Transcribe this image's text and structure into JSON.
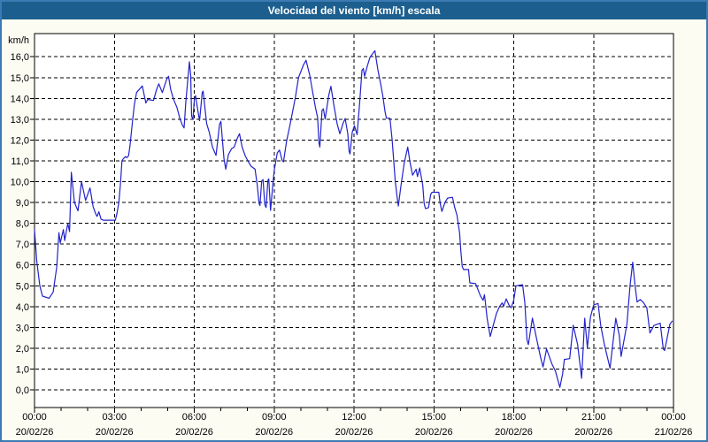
{
  "window": {
    "title": "Velocidad del viento [km/h] escala"
  },
  "chart_data": {
    "type": "line",
    "title": "Velocidad del viento [km/h] escala",
    "unit_label": "km/h",
    "series_name": "Velocidad del viento",
    "grid": "dashed",
    "legend_position": "none",
    "ylim": [
      0,
      16
    ],
    "y_tick_step": 1.0,
    "y_tick_labels": [
      "0,0",
      "1,0",
      "2,0",
      "3,0",
      "4,0",
      "5,0",
      "6,0",
      "7,0",
      "8,0",
      "9,0",
      "10,0",
      "11,0",
      "12,0",
      "13,0",
      "14,0",
      "15,0",
      "16,0"
    ],
    "x_minor_tick_hours": 1,
    "x_ticks": [
      {
        "hour": 0,
        "time": "00:00",
        "date": "20/02/26"
      },
      {
        "hour": 3,
        "time": "03:00",
        "date": "20/02/26"
      },
      {
        "hour": 6,
        "time": "06:00",
        "date": "20/02/26"
      },
      {
        "hour": 9,
        "time": "09:00",
        "date": "20/02/26"
      },
      {
        "hour": 12,
        "time": "12:00",
        "date": "20/02/26"
      },
      {
        "hour": 15,
        "time": "15:00",
        "date": "20/02/26"
      },
      {
        "hour": 18,
        "time": "18:00",
        "date": "20/02/26"
      },
      {
        "hour": 21,
        "time": "21:00",
        "date": "20/02/26"
      },
      {
        "hour": 24,
        "time": "00:00",
        "date": "21/02/26"
      }
    ],
    "points_minute_kmh": [
      [
        0,
        7.7
      ],
      [
        5,
        6.2
      ],
      [
        12,
        5.0
      ],
      [
        18,
        4.5
      ],
      [
        33,
        4.4
      ],
      [
        42,
        4.7
      ],
      [
        50,
        5.9
      ],
      [
        55,
        7.55
      ],
      [
        58,
        7.06
      ],
      [
        65,
        7.7
      ],
      [
        68,
        7.17
      ],
      [
        75,
        8.0
      ],
      [
        79,
        7.6
      ],
      [
        83,
        10.45
      ],
      [
        90,
        9.0
      ],
      [
        98,
        8.6
      ],
      [
        106,
        10.0
      ],
      [
        115,
        9.1
      ],
      [
        125,
        9.7
      ],
      [
        132,
        8.8
      ],
      [
        138,
        8.45
      ],
      [
        141,
        8.33
      ],
      [
        145,
        8.55
      ],
      [
        150,
        8.2
      ],
      [
        155,
        8.15
      ],
      [
        182,
        8.15
      ],
      [
        186,
        8.5
      ],
      [
        190,
        9.0
      ],
      [
        194,
        10.0
      ],
      [
        197,
        11.0
      ],
      [
        200,
        11.1
      ],
      [
        205,
        11.2
      ],
      [
        208,
        11.15
      ],
      [
        212,
        11.25
      ],
      [
        215,
        11.7
      ],
      [
        221,
        12.93
      ],
      [
        225,
        13.7
      ],
      [
        230,
        14.28
      ],
      [
        243,
        14.6
      ],
      [
        251,
        13.78
      ],
      [
        255,
        13.95
      ],
      [
        268,
        13.9
      ],
      [
        275,
        14.42
      ],
      [
        280,
        14.7
      ],
      [
        288,
        14.28
      ],
      [
        298,
        14.92
      ],
      [
        302,
        15.06
      ],
      [
        307,
        14.42
      ],
      [
        314,
        13.92
      ],
      [
        321,
        13.57
      ],
      [
        327,
        13.07
      ],
      [
        333,
        12.72
      ],
      [
        337,
        12.58
      ],
      [
        341,
        13.85
      ],
      [
        349,
        15.76
      ],
      [
        352,
        15.1
      ],
      [
        354,
        13.14
      ],
      [
        357,
        13.0
      ],
      [
        360,
        13.9
      ],
      [
        363,
        14.13
      ],
      [
        368,
        13.43
      ],
      [
        372,
        12.93
      ],
      [
        378,
        14.28
      ],
      [
        380,
        14.35
      ],
      [
        388,
        12.79
      ],
      [
        394,
        12.37
      ],
      [
        401,
        11.66
      ],
      [
        409,
        11.26
      ],
      [
        417,
        12.76
      ],
      [
        420,
        12.9
      ],
      [
        427,
        11.09
      ],
      [
        431,
        10.6
      ],
      [
        437,
        11.3
      ],
      [
        444,
        11.58
      ],
      [
        450,
        11.66
      ],
      [
        457,
        12.08
      ],
      [
        462,
        12.3
      ],
      [
        468,
        11.66
      ],
      [
        475,
        11.23
      ],
      [
        482,
        10.95
      ],
      [
        488,
        10.74
      ],
      [
        497,
        10.6
      ],
      [
        502,
        9.82
      ],
      [
        506,
        8.97
      ],
      [
        508,
        8.85
      ],
      [
        512,
        10.03
      ],
      [
        515,
        10.1
      ],
      [
        519,
        8.9
      ],
      [
        522,
        8.76
      ],
      [
        526,
        10.06
      ],
      [
        528,
        10.13
      ],
      [
        532,
        8.62
      ],
      [
        537,
        9.82
      ],
      [
        540,
        10.53
      ],
      [
        547,
        11.38
      ],
      [
        552,
        11.52
      ],
      [
        558,
        11.02
      ],
      [
        561,
        10.95
      ],
      [
        568,
        11.94
      ],
      [
        575,
        12.65
      ],
      [
        581,
        13.29
      ],
      [
        588,
        14.06
      ],
      [
        595,
        15.0
      ],
      [
        606,
        15.6
      ],
      [
        612,
        15.83
      ],
      [
        620,
        15.13
      ],
      [
        627,
        14.28
      ],
      [
        633,
        13.57
      ],
      [
        638,
        13.07
      ],
      [
        641,
        11.87
      ],
      [
        643,
        11.66
      ],
      [
        648,
        13.43
      ],
      [
        651,
        13.5
      ],
      [
        655,
        13.0
      ],
      [
        663,
        14.13
      ],
      [
        668,
        14.58
      ],
      [
        675,
        13.64
      ],
      [
        682,
        12.79
      ],
      [
        688,
        12.3
      ],
      [
        695,
        12.79
      ],
      [
        700,
        13.03
      ],
      [
        706,
        12.3
      ],
      [
        709,
        11.45
      ],
      [
        711,
        11.33
      ],
      [
        716,
        12.37
      ],
      [
        721,
        12.69
      ],
      [
        727,
        12.26
      ],
      [
        733,
        13.85
      ],
      [
        738,
        15.34
      ],
      [
        741,
        15.44
      ],
      [
        744,
        15.06
      ],
      [
        750,
        15.55
      ],
      [
        756,
        15.98
      ],
      [
        767,
        16.29
      ],
      [
        774,
        15.34
      ],
      [
        780,
        14.7
      ],
      [
        785,
        14.11
      ],
      [
        790,
        13.36
      ],
      [
        793,
        13.05
      ],
      [
        801,
        13.05
      ],
      [
        806,
        12.01
      ],
      [
        810,
        10.88
      ],
      [
        813,
        10.03
      ],
      [
        817,
        9.3
      ],
      [
        820,
        8.83
      ],
      [
        826,
        9.82
      ],
      [
        833,
        10.88
      ],
      [
        841,
        11.66
      ],
      [
        846,
        10.95
      ],
      [
        852,
        10.31
      ],
      [
        860,
        10.6
      ],
      [
        863,
        10.24
      ],
      [
        868,
        10.66
      ],
      [
        875,
        9.82
      ],
      [
        878,
        8.97
      ],
      [
        881,
        8.71
      ],
      [
        888,
        8.75
      ],
      [
        893,
        9.39
      ],
      [
        896,
        9.49
      ],
      [
        911,
        9.49
      ],
      [
        914,
        8.97
      ],
      [
        918,
        8.57
      ],
      [
        925,
        9.0
      ],
      [
        931,
        9.21
      ],
      [
        942,
        9.25
      ],
      [
        947,
        8.76
      ],
      [
        952,
        8.4
      ],
      [
        958,
        7.55
      ],
      [
        961,
        6.63
      ],
      [
        964,
        5.92
      ],
      [
        967,
        5.78
      ],
      [
        978,
        5.78
      ],
      [
        981,
        5.14
      ],
      [
        994,
        5.1
      ],
      [
        998,
        4.89
      ],
      [
        1005,
        4.51
      ],
      [
        1011,
        4.3
      ],
      [
        1014,
        4.57
      ],
      [
        1016,
        4.22
      ],
      [
        1020,
        3.44
      ],
      [
        1027,
        2.56
      ],
      [
        1041,
        3.66
      ],
      [
        1048,
        4.01
      ],
      [
        1054,
        4.18
      ],
      [
        1057,
        4.01
      ],
      [
        1063,
        4.37
      ],
      [
        1069,
        4.08
      ],
      [
        1074,
        3.94
      ],
      [
        1080,
        4.3
      ],
      [
        1085,
        5.0
      ],
      [
        1100,
        5.05
      ],
      [
        1105,
        4.2
      ],
      [
        1110,
        2.4
      ],
      [
        1113,
        2.17
      ],
      [
        1122,
        3.45
      ],
      [
        1130,
        2.6
      ],
      [
        1140,
        1.6
      ],
      [
        1146,
        1.1
      ],
      [
        1154,
        1.96
      ],
      [
        1166,
        1.25
      ],
      [
        1174,
        0.9
      ],
      [
        1184,
        0.12
      ],
      [
        1190,
        0.76
      ],
      [
        1194,
        1.46
      ],
      [
        1206,
        1.5
      ],
      [
        1214,
        3.1
      ],
      [
        1224,
        2.17
      ],
      [
        1233,
        0.55
      ],
      [
        1240,
        3.44
      ],
      [
        1246,
        2.03
      ],
      [
        1253,
        3.5
      ],
      [
        1260,
        4.08
      ],
      [
        1270,
        4.15
      ],
      [
        1276,
        3.09
      ],
      [
        1284,
        2.2
      ],
      [
        1297,
        1.04
      ],
      [
        1310,
        3.44
      ],
      [
        1318,
        2.6
      ],
      [
        1322,
        1.6
      ],
      [
        1335,
        3.16
      ],
      [
        1342,
        5.0
      ],
      [
        1348,
        6.13
      ],
      [
        1353,
        5.07
      ],
      [
        1358,
        4.22
      ],
      [
        1365,
        4.34
      ],
      [
        1372,
        4.2
      ],
      [
        1380,
        3.94
      ],
      [
        1387,
        2.73
      ],
      [
        1396,
        3.09
      ],
      [
        1410,
        3.2
      ],
      [
        1417,
        1.96
      ],
      [
        1420,
        1.89
      ],
      [
        1432,
        3.16
      ],
      [
        1437,
        3.3
      ]
    ],
    "colors": {
      "line": "#2222cc",
      "titlebar_bg": "#1c5f8f",
      "titlebar_text": "#ffffff",
      "frame_border": "#3b7ab2",
      "page_bg": "#fcfcf3",
      "plot_bg": "#ffffff",
      "grid": "#000000",
      "axis_text": "#000000"
    }
  }
}
